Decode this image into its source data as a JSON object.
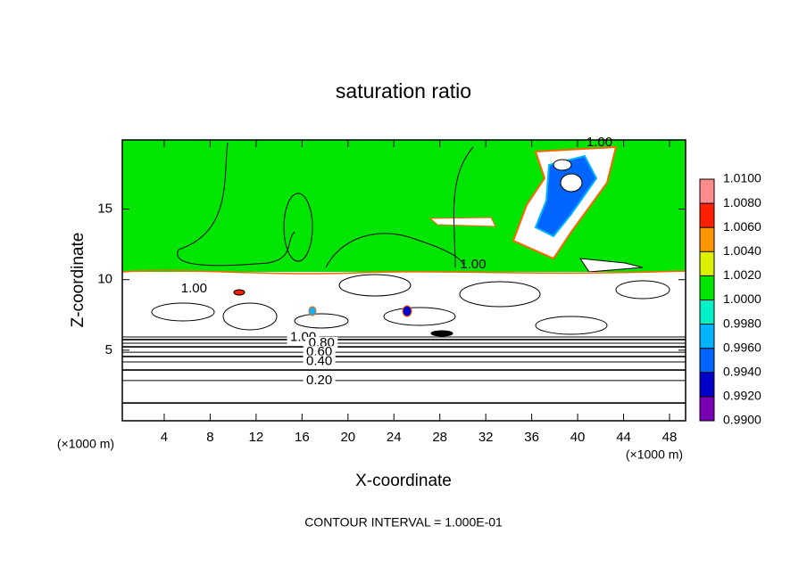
{
  "chart_data": {
    "type": "contour",
    "title": "saturation ratio",
    "x_label": "X-coordinate",
    "y_label": "Z-coordinate",
    "x_unit": "(×1000 m)",
    "y_unit": "(×1000 m)",
    "annotation": "CONTOUR INTERVAL = 1.000E-01",
    "xlim": [
      0.35,
      49.4
    ],
    "ylim": [
      0,
      19.9
    ],
    "xticks": [
      4,
      8,
      12,
      16,
      20,
      24,
      28,
      32,
      36,
      40,
      44,
      48
    ],
    "yticks": [
      5,
      10,
      15
    ],
    "field": {
      "color": "#00e600",
      "interface_z": 10.5
    },
    "contour_lines": [
      {
        "level": 0.1,
        "z": 1.26
      },
      {
        "level": 0.2,
        "z": 2.85
      },
      {
        "level": 0.3,
        "z": 3.6
      },
      {
        "level": 0.4,
        "z": 4.17
      },
      {
        "level": 0.5,
        "z": 4.55
      },
      {
        "level": 0.6,
        "z": 4.86
      },
      {
        "level": 0.7,
        "z": 5.24
      },
      {
        "level": 0.8,
        "z": 5.5
      },
      {
        "level": 0.9,
        "z": 5.75
      },
      {
        "level": 1.0,
        "z": 5.94
      }
    ],
    "contour_labels": [
      {
        "text": "1.00",
        "x": 41.9,
        "z": 19.7
      },
      {
        "text": "1.00",
        "x": 30.9,
        "z": 11.05
      },
      {
        "text": "1.00",
        "x": 6.6,
        "z": 9.35
      },
      {
        "text": "1.00",
        "x": 16.1,
        "z": 5.9
      },
      {
        "text": "0.80",
        "x": 17.7,
        "z": 5.5
      },
      {
        "text": "0.60",
        "x": 17.5,
        "z": 4.85
      },
      {
        "text": "0.40",
        "x": 17.5,
        "z": 4.2
      },
      {
        "text": "0.20",
        "x": 17.5,
        "z": 2.85
      }
    ],
    "colorbar": {
      "ticks": [
        {
          "value": 0.99,
          "label": "0.9900"
        },
        {
          "value": 0.992,
          "label": "0.9920"
        },
        {
          "value": 0.994,
          "label": "0.9940"
        },
        {
          "value": 0.996,
          "label": "0.9960"
        },
        {
          "value": 0.998,
          "label": "0.9980"
        },
        {
          "value": 1.0,
          "label": "1.0000"
        },
        {
          "value": 1.002,
          "label": "1.0020"
        },
        {
          "value": 1.004,
          "label": "1.0040"
        },
        {
          "value": 1.006,
          "label": "1.0060"
        },
        {
          "value": 1.008,
          "label": "1.0080"
        },
        {
          "value": 1.01,
          "label": "1.0100"
        }
      ],
      "colors": [
        "#7a00b4",
        "#0000c8",
        "#0064ff",
        "#00b4ff",
        "#00f0c8",
        "#00e600",
        "#dcf000",
        "#ff9600",
        "#ff1e00",
        "#ff8c8c"
      ]
    }
  }
}
